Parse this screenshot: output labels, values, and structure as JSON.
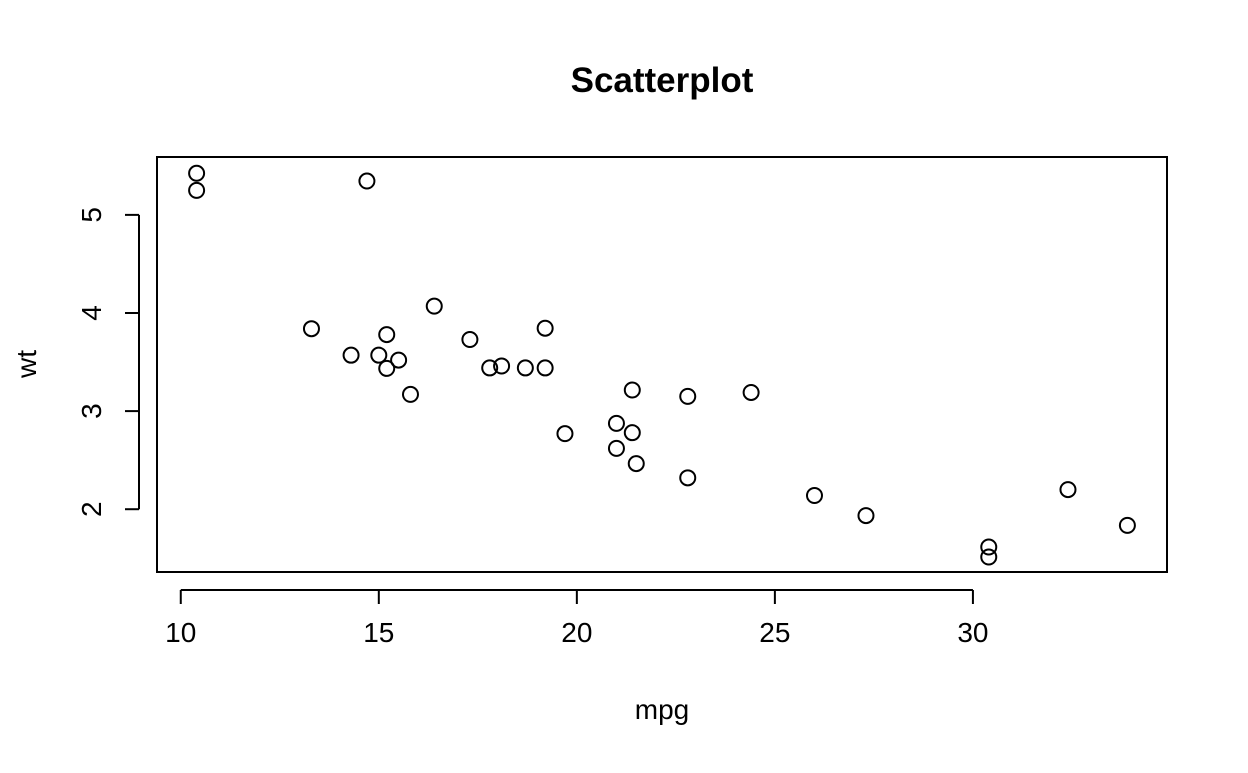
{
  "chart_data": {
    "type": "scatter",
    "title": "Scatterplot",
    "xlabel": "mpg",
    "ylabel": "wt",
    "xlim": [
      9.4,
      34.9
    ],
    "ylim": [
      1.36,
      5.59
    ],
    "xticks": [
      10,
      15,
      20,
      25,
      30
    ],
    "yticks": [
      2,
      3,
      4,
      5
    ],
    "grid": false,
    "legend": "none",
    "marker": "open-circle",
    "colors": {
      "point_stroke": "#000000",
      "axis": "#000000",
      "background": "#ffffff"
    },
    "points": [
      {
        "x": 21.0,
        "y": 2.62
      },
      {
        "x": 21.0,
        "y": 2.875
      },
      {
        "x": 22.8,
        "y": 2.32
      },
      {
        "x": 21.4,
        "y": 3.215
      },
      {
        "x": 18.7,
        "y": 3.44
      },
      {
        "x": 18.1,
        "y": 3.46
      },
      {
        "x": 14.3,
        "y": 3.57
      },
      {
        "x": 24.4,
        "y": 3.19
      },
      {
        "x": 22.8,
        "y": 3.15
      },
      {
        "x": 19.2,
        "y": 3.44
      },
      {
        "x": 17.8,
        "y": 3.44
      },
      {
        "x": 16.4,
        "y": 4.07
      },
      {
        "x": 17.3,
        "y": 3.73
      },
      {
        "x": 15.2,
        "y": 3.78
      },
      {
        "x": 10.4,
        "y": 5.25
      },
      {
        "x": 10.4,
        "y": 5.424
      },
      {
        "x": 14.7,
        "y": 5.345
      },
      {
        "x": 32.4,
        "y": 2.2
      },
      {
        "x": 30.4,
        "y": 1.615
      },
      {
        "x": 33.9,
        "y": 1.835
      },
      {
        "x": 21.5,
        "y": 2.465
      },
      {
        "x": 15.5,
        "y": 3.52
      },
      {
        "x": 15.2,
        "y": 3.435
      },
      {
        "x": 13.3,
        "y": 3.84
      },
      {
        "x": 19.2,
        "y": 3.845
      },
      {
        "x": 27.3,
        "y": 1.935
      },
      {
        "x": 26.0,
        "y": 2.14
      },
      {
        "x": 30.4,
        "y": 1.513
      },
      {
        "x": 15.8,
        "y": 3.17
      },
      {
        "x": 19.7,
        "y": 2.77
      },
      {
        "x": 15.0,
        "y": 3.57
      },
      {
        "x": 21.4,
        "y": 2.78
      }
    ]
  }
}
